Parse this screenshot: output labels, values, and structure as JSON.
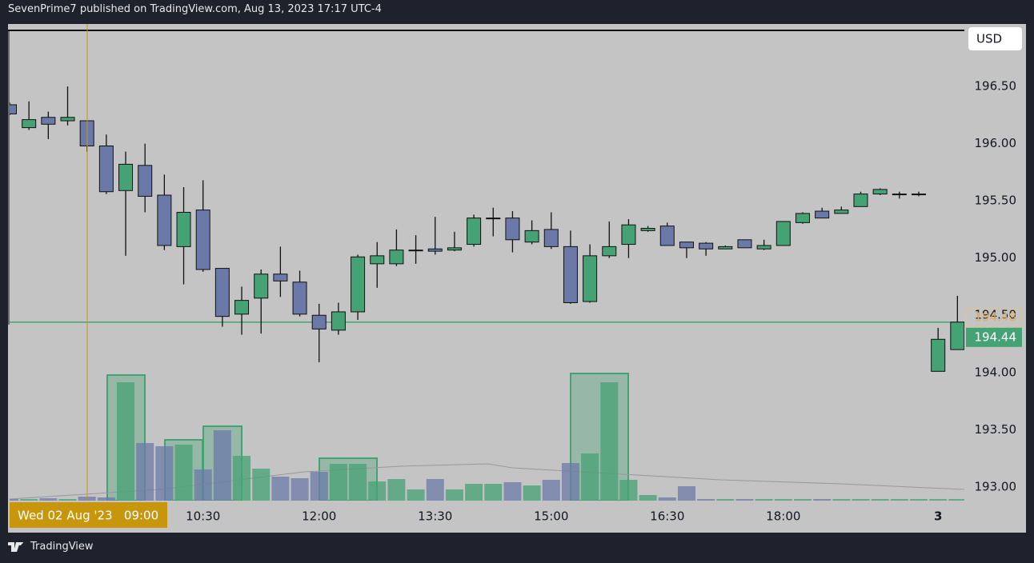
{
  "header": "SevenPrime7 published on TradingView.com, Aug 13, 2023 17:17 UTC-4",
  "footer_brand": "TradingView",
  "chart_data": {
    "type": "candlestick",
    "currency": "USD",
    "crosshair_label": "Wed 02 Aug '23   09:00",
    "categories": [
      null,
      null,
      null,
      null,
      null,
      null,
      null,
      null,
      null,
      null,
      "10:30",
      null,
      null,
      null,
      null,
      null,
      "12:00",
      null,
      null,
      null,
      null,
      null,
      "13:30",
      null,
      null,
      null,
      null,
      null,
      "15:00",
      null,
      null,
      null,
      null,
      null,
      "16:30",
      null,
      null,
      null,
      null,
      null,
      "18:00",
      null,
      null,
      null,
      null,
      null,
      null,
      null,
      "3",
      null
    ],
    "open": [
      196.34,
      196.14,
      196.23,
      196.2,
      196.2,
      195.98,
      195.59,
      195.81,
      195.55,
      195.1,
      195.42,
      194.91,
      194.51,
      194.65,
      194.86,
      194.79,
      194.5,
      194.37,
      194.53,
      194.95,
      194.95,
      195.07,
      195.08,
      195.07,
      195.12,
      195.35,
      195.35,
      195.14,
      195.25,
      195.1,
      194.62,
      195.02,
      195.12,
      195.24,
      195.28,
      195.14,
      195.13,
      195.08,
      195.16,
      195.08,
      195.11,
      195.31,
      195.41,
      195.39,
      195.45,
      195.56,
      195.56,
      195.56,
      194.01,
      194.2
    ],
    "high": [
      196.36,
      196.37,
      196.28,
      196.5,
      196.2,
      196.08,
      195.93,
      196.0,
      195.73,
      195.62,
      195.68,
      194.91,
      194.75,
      194.9,
      195.1,
      194.89,
      194.6,
      194.61,
      195.03,
      195.14,
      195.25,
      195.2,
      195.36,
      195.23,
      195.38,
      195.44,
      195.41,
      195.33,
      195.4,
      195.24,
      195.12,
      195.32,
      195.34,
      195.28,
      195.31,
      195.14,
      195.14,
      195.11,
      195.16,
      195.16,
      195.32,
      195.4,
      195.44,
      195.45,
      195.58,
      195.61,
      195.58,
      195.58,
      194.39,
      194.67
    ],
    "low": [
      196.25,
      196.12,
      196.04,
      196.16,
      195.93,
      195.56,
      195.02,
      195.4,
      195.07,
      194.77,
      194.88,
      194.4,
      194.33,
      194.34,
      194.66,
      194.49,
      194.09,
      194.33,
      194.46,
      194.74,
      194.93,
      194.95,
      195.03,
      195.06,
      195.1,
      195.19,
      195.05,
      195.12,
      195.08,
      194.6,
      194.61,
      195.0,
      195.0,
      195.23,
      195.11,
      195.0,
      195.02,
      195.08,
      195.09,
      195.07,
      195.11,
      195.3,
      195.35,
      195.39,
      195.45,
      195.55,
      195.52,
      195.54,
      194.01,
      194.2
    ],
    "close": [
      196.26,
      196.21,
      196.17,
      196.23,
      195.98,
      195.58,
      195.82,
      195.54,
      195.11,
      195.4,
      194.9,
      194.49,
      194.63,
      194.86,
      194.8,
      194.51,
      194.38,
      194.53,
      195.01,
      195.02,
      195.07,
      195.07,
      195.06,
      195.09,
      195.35,
      195.35,
      195.16,
      195.24,
      195.1,
      194.61,
      195.02,
      195.1,
      195.29,
      195.26,
      195.11,
      195.09,
      195.08,
      195.1,
      195.09,
      195.11,
      195.32,
      195.39,
      195.35,
      195.42,
      195.56,
      195.6,
      195.56,
      195.56,
      194.29,
      194.44
    ],
    "volume": [
      2,
      2,
      3,
      2,
      5,
      4,
      148,
      72,
      68,
      70,
      39,
      88,
      56,
      40,
      30,
      28,
      36,
      46,
      46,
      24,
      27,
      14,
      27,
      14,
      21,
      21,
      23,
      19,
      26,
      47,
      59,
      148,
      26,
      7,
      4,
      18,
      2,
      2,
      2,
      2,
      2,
      2,
      2,
      2,
      2,
      2,
      2,
      2,
      2,
      2
    ],
    "up_color": "#45a274",
    "down_color": "#6b79a8",
    "last_price": 194.44,
    "marker_price": 194.48,
    "ylim": [
      192.88,
      196.99
    ],
    "yticks": [
      {
        "value": 193,
        "label": "193.00"
      },
      {
        "value": 193.5,
        "label": "193.50"
      },
      {
        "value": 194,
        "label": "194.00"
      },
      {
        "value": 194.5,
        "label": "194.50"
      },
      {
        "value": 195,
        "label": "195.00"
      },
      {
        "value": 195.5,
        "label": "195.50"
      },
      {
        "value": 196,
        "label": "196.00"
      },
      {
        "value": 196.5,
        "label": "196.50"
      }
    ]
  }
}
